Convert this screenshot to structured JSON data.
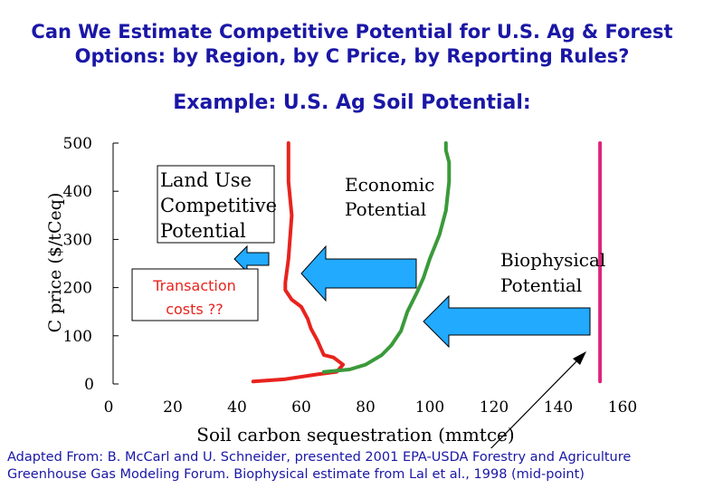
{
  "header": {
    "title_line1": "Can We Estimate Competitive Potential for U.S. Ag & Forest",
    "title_line2": "Options: by Region, by C Price, by Reporting Rules?",
    "subtitle": "Example:  U.S. Ag Soil Potential:"
  },
  "colors": {
    "title": "#1a17a6",
    "land_use_curve": "#e8231e",
    "economic_curve": "#3a9a3a",
    "biophysical_line": "#e0247a",
    "arrows": "#22aaff",
    "transaction_text": "#e8231e"
  },
  "chart_data": {
    "type": "line",
    "xlabel": "Soil carbon sequestration (mmtce)",
    "ylabel": "C price  ($/tCeq)",
    "xlim": [
      0,
      160
    ],
    "ylim": [
      0,
      500
    ],
    "x_ticks": [
      "0",
      "20",
      "40",
      "60",
      "80",
      "100",
      "120",
      "140",
      "160"
    ],
    "y_ticks": [
      "0",
      "100",
      "200",
      "300",
      "400",
      "500"
    ],
    "series": [
      {
        "name": "Land Use Competitive Potential",
        "color": "#e8231e",
        "points": [
          [
            45,
            5
          ],
          [
            55,
            10
          ],
          [
            65,
            20
          ],
          [
            71,
            25
          ],
          [
            73,
            40
          ],
          [
            70,
            55
          ],
          [
            67,
            60
          ],
          [
            66,
            75
          ],
          [
            65,
            90
          ],
          [
            63,
            115
          ],
          [
            62,
            135
          ],
          [
            60,
            160
          ],
          [
            57,
            175
          ],
          [
            55,
            195
          ],
          [
            55,
            210
          ],
          [
            56,
            260
          ],
          [
            57,
            350
          ],
          [
            56,
            420
          ],
          [
            56,
            500
          ]
        ]
      },
      {
        "name": "Economic Potential",
        "color": "#3a9a3a",
        "points": [
          [
            67,
            25
          ],
          [
            75,
            30
          ],
          [
            80,
            40
          ],
          [
            85,
            60
          ],
          [
            88,
            80
          ],
          [
            91,
            110
          ],
          [
            93,
            150
          ],
          [
            96,
            190
          ],
          [
            98,
            220
          ],
          [
            100,
            260
          ],
          [
            103,
            310
          ],
          [
            105,
            360
          ],
          [
            106,
            420
          ],
          [
            106,
            460
          ],
          [
            105,
            485
          ],
          [
            105,
            500
          ]
        ]
      },
      {
        "name": "Biophysical Potential",
        "color": "#e0247a",
        "points": [
          [
            153,
            5
          ],
          [
            153,
            500
          ]
        ]
      }
    ],
    "annotations": {
      "land_use_l1": "Land Use",
      "land_use_l2": "Competitive",
      "land_use_l3": "Potential",
      "economic_l1": "Economic",
      "economic_l2": "Potential",
      "biophysical_l1": "Biophysical",
      "biophysical_l2": "Potential",
      "transaction_l1": "Transaction",
      "transaction_l2": "costs ??"
    },
    "legend": "none",
    "grid": false
  },
  "footnote": {
    "line1": "Adapted From: B. McCarl and U. Schneider, presented 2001 EPA-USDA Forestry and Agriculture",
    "line2": "Greenhouse Gas Modeling Forum.  Biophysical estimate from Lal et al., 1998 (mid-point)"
  }
}
